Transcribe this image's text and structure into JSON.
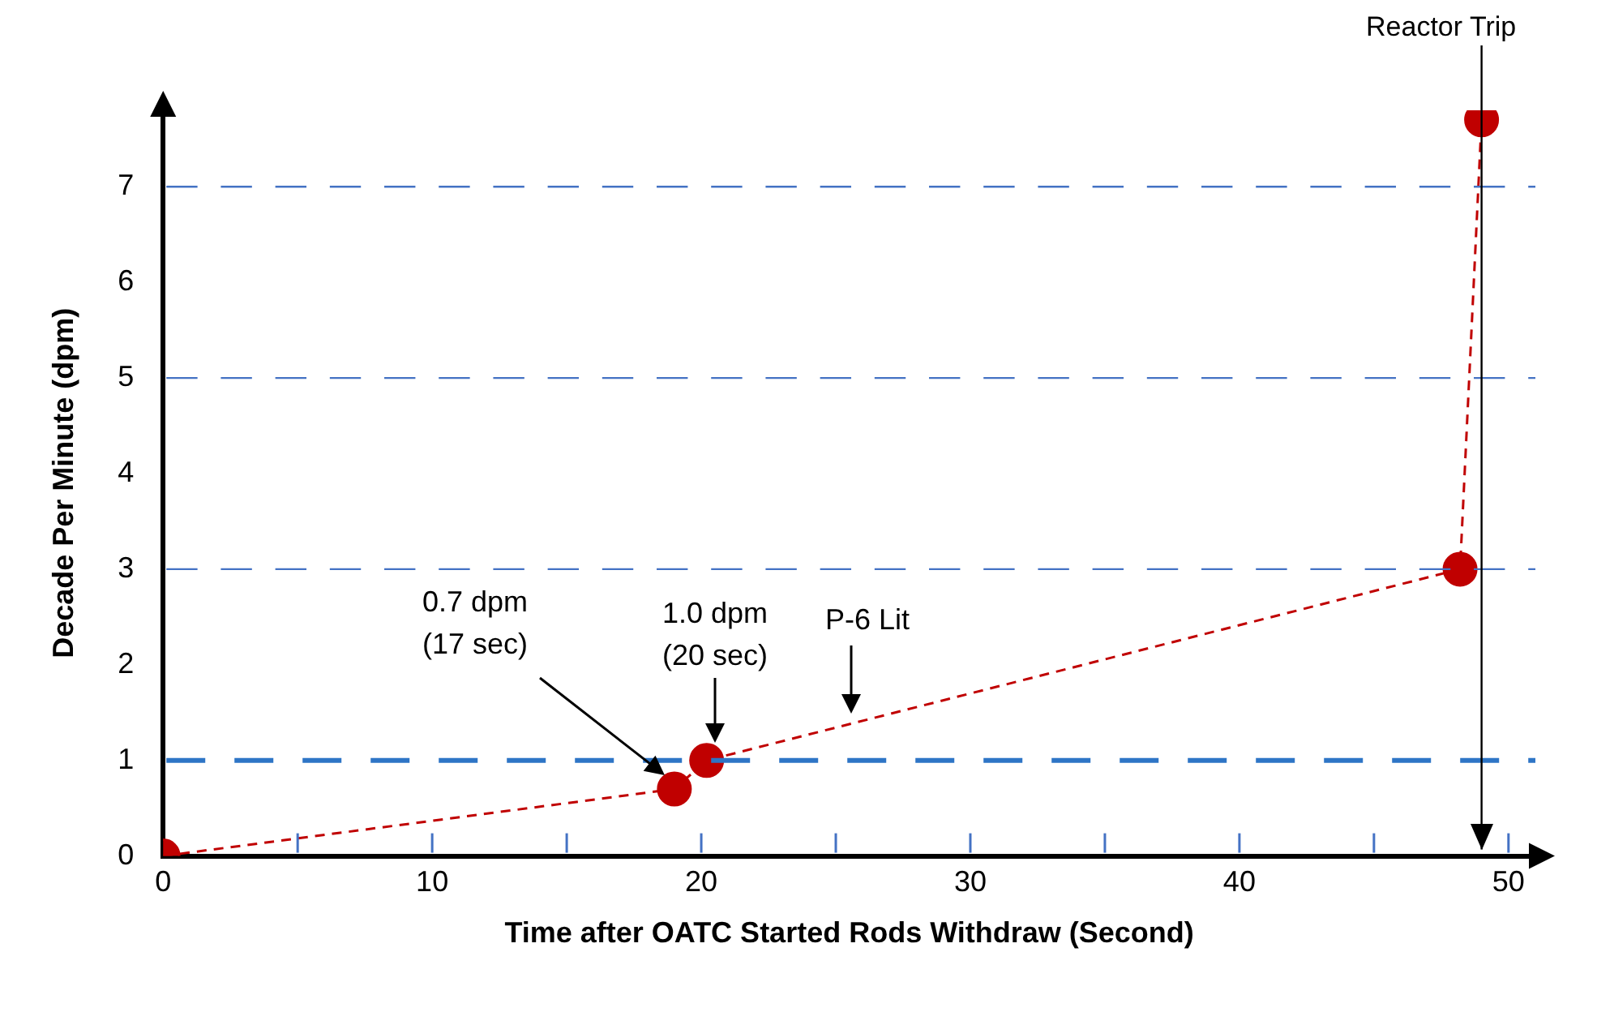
{
  "chart_data": {
    "type": "line",
    "xlabel": "Time after OATC Started Rods Withdraw (Second)",
    "ylabel": "Decade Per Minute (dpm)",
    "x": [
      0,
      19,
      20.2,
      48.2,
      49
    ],
    "series": [
      {
        "color": "#c00000",
        "values": [
          0,
          0.7,
          1.0,
          3.0,
          7.7
        ]
      }
    ],
    "xlim": [
      0,
      51
    ],
    "ylim": [
      0,
      7.8
    ],
    "xticks": [
      0,
      {
        "value": 5,
        "label": null
      },
      10,
      {
        "value": 15,
        "label": null
      },
      20,
      {
        "value": 25,
        "label": null
      },
      30,
      {
        "value": 35,
        "label": null
      },
      40,
      {
        "value": 45,
        "label": null
      },
      50
    ],
    "yticks": [
      0,
      1,
      2,
      3,
      4,
      5,
      6,
      7
    ],
    "grid": false,
    "legend": false,
    "marker": "circle",
    "line_style": "dashed",
    "ref_lines": [
      {
        "axis": "y",
        "value": 1,
        "color": "#2e75c6",
        "line_style": "dashed"
      },
      {
        "axis": "y",
        "value": 3,
        "color": "#4472c4",
        "line_style": "dashed"
      },
      {
        "axis": "y",
        "value": 5,
        "color": "#4472c4",
        "line_style": "dashed"
      },
      {
        "axis": "y",
        "value": 7,
        "color": "#4472c4",
        "line_style": "dashed"
      },
      {
        "axis": "x",
        "value": 49,
        "label": "Reactor Trip",
        "color": "#000000",
        "line_style": "solid"
      }
    ],
    "annotations": [
      "0.7 dpm\n(17 sec)",
      "1.0 dpm\n(20 sec)",
      "P-6 Lit"
    ]
  }
}
